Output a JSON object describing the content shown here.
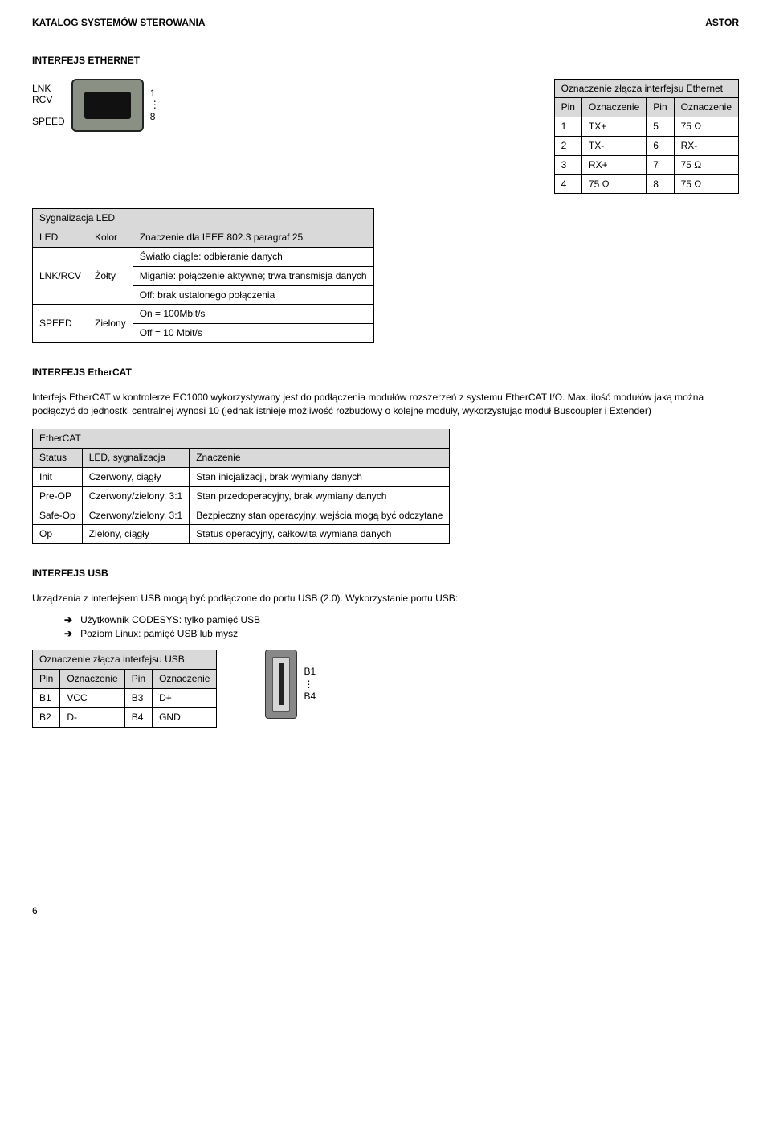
{
  "header": {
    "left": "KATALOG SYSTEMÓW STEROWANIA",
    "right": "ASTOR"
  },
  "ethernet": {
    "title": "INTERFEJS ETHERNET",
    "connector": {
      "left_labels": [
        "LNK",
        "RCV",
        "SPEED"
      ],
      "right_top": "1",
      "right_mid": "⋮",
      "right_bottom": "8"
    },
    "pinout": {
      "caption": "Oznaczenie złącza interfejsu Ethernet",
      "cols": [
        "Pin",
        "Oznaczenie",
        "Pin",
        "Oznaczenie"
      ],
      "rows": [
        [
          "1",
          "TX+",
          "5",
          "75 Ω"
        ],
        [
          "2",
          "TX-",
          "6",
          "RX-"
        ],
        [
          "3",
          "RX+",
          "7",
          "75 Ω"
        ],
        [
          "4",
          "75 Ω",
          "8",
          "75 Ω"
        ]
      ]
    },
    "sig": {
      "caption": "Sygnalizacja LED",
      "cols": [
        "LED",
        "Kolor",
        "Znaczenie dla IEEE 802.3 paragraf 25"
      ],
      "rows": [
        {
          "led": "LNK/RCV",
          "color": "Żółty",
          "lines": [
            "Światło ciągle: odbieranie danych",
            "Miganie: połączenie aktywne; trwa transmisja danych",
            "Off: brak ustalonego połączenia"
          ]
        },
        {
          "led": "SPEED",
          "color": "Zielony",
          "lines": [
            "On = 100Mbit/s",
            "Off = 10 Mbit/s"
          ]
        }
      ]
    }
  },
  "ethercat": {
    "title": "INTERFEJS EtherCAT",
    "p1": "Interfejs EtherCAT w kontrolerze EC1000 wykorzystywany jest do podłączenia modułów rozszerzeń z systemu EtherCAT I/O. Max. ilość modułów jaką można podłączyć do jednostki centralnej wynosi 10 (jednak istnieje możliwość rozbudowy o kolejne moduły, wykorzystując moduł Buscoupler i Extender)",
    "table": {
      "caption": "EtherCAT",
      "cols": [
        "Status",
        "LED, sygnalizacja",
        "Znaczenie"
      ],
      "rows": [
        [
          "Init",
          "Czerwony, ciągły",
          "Stan inicjalizacji, brak wymiany danych"
        ],
        [
          "Pre-OP",
          "Czerwony/zielony, 3:1",
          "Stan przedoperacyjny, brak wymiany danych"
        ],
        [
          "Safe-Op",
          "Czerwony/zielony, 3:1",
          "Bezpieczny stan operacyjny, wejścia mogą być odczytane"
        ],
        [
          "Op",
          "Zielony, ciągły",
          "Status operacyjny, całkowita wymiana danych"
        ]
      ]
    }
  },
  "usb": {
    "title": "INTERFEJS USB",
    "p1": "Urządzenia z interfejsem USB mogą być podłączone do portu USB (2.0). Wykorzystanie portu USB:",
    "bullets": [
      "Użytkownik CODESYS: tylko pamięć USB",
      "Poziom Linux: pamięć USB lub mysz"
    ],
    "pinout": {
      "caption": "Oznaczenie złącza interfejsu USB",
      "cols": [
        "Pin",
        "Oznaczenie",
        "Pin",
        "Oznaczenie"
      ],
      "rows": [
        [
          "B1",
          "VCC",
          "B3",
          "D+"
        ],
        [
          "B2",
          "D-",
          "B4",
          "GND"
        ]
      ]
    },
    "connector": {
      "top": "B1",
      "mid": "⋮",
      "bottom": "B4"
    }
  },
  "footer": {
    "page": "6"
  }
}
